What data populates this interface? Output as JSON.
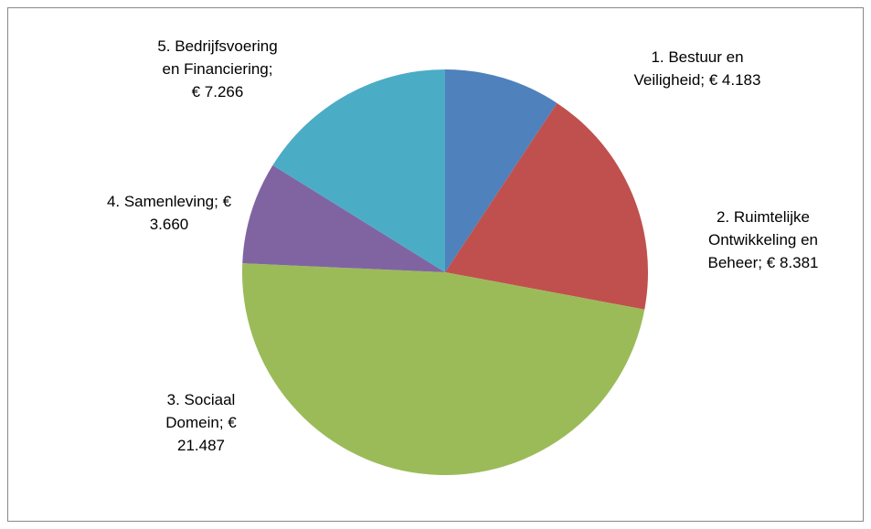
{
  "chart_data": {
    "type": "pie",
    "categories": [
      "1. Bestuur en Veiligheid;",
      "2. Ruimtelijke Ontwikkeling en Beheer;",
      "3. Sociaal Domein;",
      "4. Samenleving;",
      "5. Bedrijfsvoering en Financiering;"
    ],
    "values": [
      4183,
      8381,
      21487,
      3660,
      7266
    ],
    "value_labels": [
      "€ 4.183",
      "€ 8.381",
      "€ 21.487",
      "€ 3.660",
      "€ 7.266"
    ],
    "colors": [
      "#4f81bd",
      "#c0504d",
      "#9bbb59",
      "#8064a2",
      "#4bacc6"
    ]
  }
}
